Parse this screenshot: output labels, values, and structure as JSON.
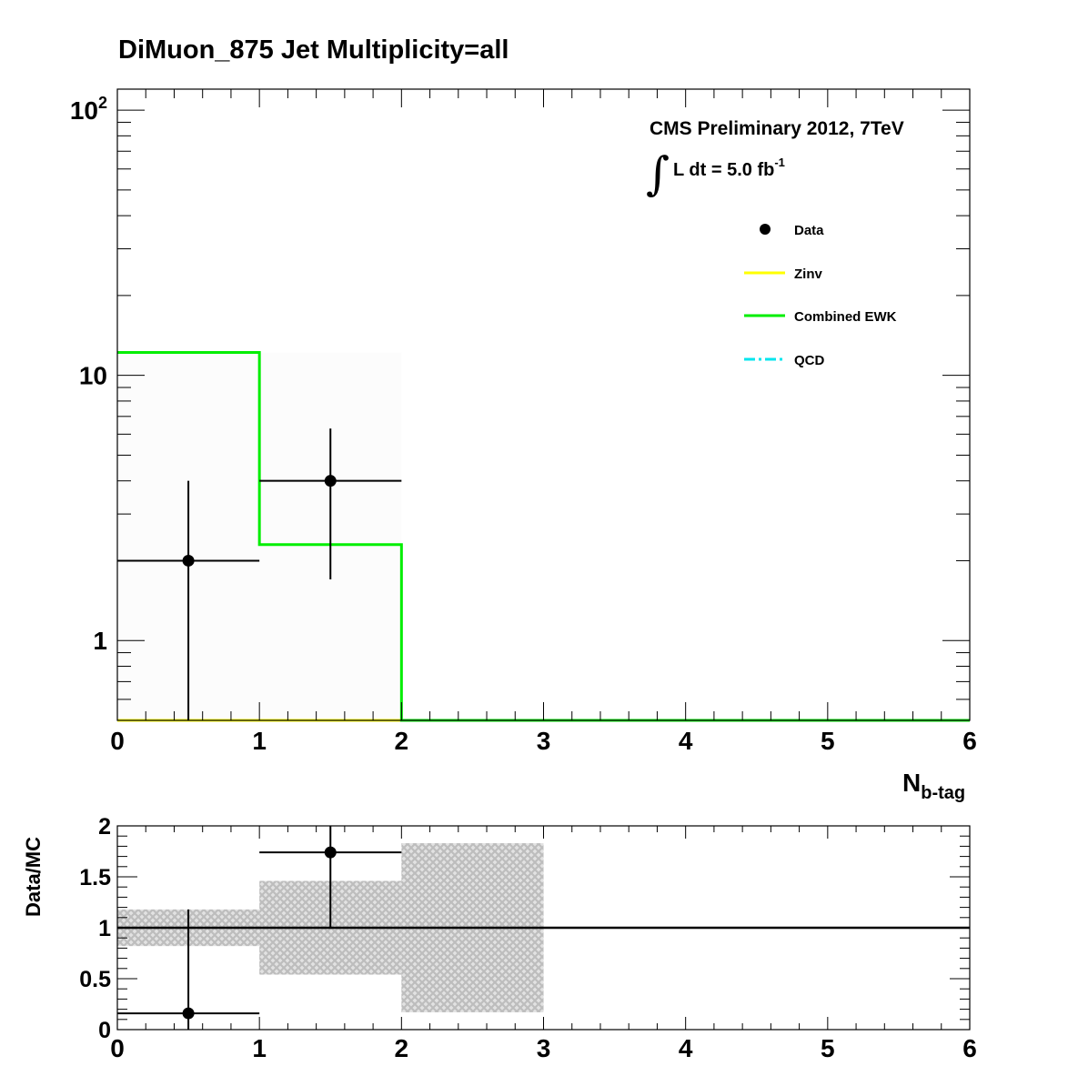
{
  "title": "DiMuon_875    Jet Multiplicity=all",
  "cms_label": "CMS Preliminary 2012, 7TeV",
  "lumi_label": "L dt = 5.0 fb",
  "lumi_exp": "-1",
  "integral_symbol": "∫",
  "colors": {
    "zinv": "#ffff00",
    "ewk": "#00ee00",
    "qcd": "#00e5ee",
    "data": "#000000",
    "band": "#c8c8c8"
  },
  "chart_data": [
    {
      "type": "histogram",
      "name": "main",
      "xlabel_main": "N",
      "xlabel_sub": "b-tag",
      "xlim": [
        0,
        6
      ],
      "ylim": [
        0.5,
        120
      ],
      "yscale": "log",
      "xticks": [
        "0",
        "1",
        "2",
        "3",
        "4",
        "5",
        "6"
      ],
      "yticks": [
        {
          "value": 1,
          "label": "1"
        },
        {
          "value": 10,
          "label": "10"
        },
        {
          "value": 100,
          "label": "10",
          "exp": "2"
        }
      ],
      "bin_edges": [
        0,
        1,
        2,
        3,
        4,
        5,
        6
      ],
      "series": [
        {
          "name": "Combined EWK",
          "style": "solid",
          "values": [
            12.2,
            2.3,
            0,
            0,
            0,
            0
          ]
        },
        {
          "name": "Zinv",
          "style": "solid",
          "values": [
            0,
            0,
            0,
            0,
            0,
            0
          ]
        },
        {
          "name": "QCD",
          "style": "dash-dot",
          "values": [
            0,
            0,
            0,
            0,
            0,
            0
          ]
        }
      ],
      "data_points": [
        {
          "x": 0.5,
          "y": 2.0,
          "xerr": 0.5,
          "ylo": 0.5,
          "yhi": 4.0
        },
        {
          "x": 1.5,
          "y": 4.0,
          "xerr": 0.5,
          "ylo": 1.7,
          "yhi": 6.3
        }
      ],
      "legend": [
        "Data",
        "Zinv",
        "Combined EWK",
        "QCD"
      ],
      "legend_position": "top-right"
    },
    {
      "type": "ratio",
      "name": "ratio",
      "ylabel": "Data/MC",
      "xlim": [
        0,
        6
      ],
      "ylim": [
        0,
        2
      ],
      "xticks": [
        "0",
        "1",
        "2",
        "3",
        "4",
        "5",
        "6"
      ],
      "yticks": [
        {
          "value": 0,
          "label": "0"
        },
        {
          "value": 0.5,
          "label": "0.5"
        },
        {
          "value": 1,
          "label": "1"
        },
        {
          "value": 1.5,
          "label": "1.5"
        },
        {
          "value": 2,
          "label": "2"
        }
      ],
      "reference_line": 1,
      "uncertainty_bands": [
        {
          "x0": 0,
          "x1": 1,
          "lo": 0.82,
          "hi": 1.18
        },
        {
          "x0": 1,
          "x1": 2,
          "lo": 0.54,
          "hi": 1.46
        },
        {
          "x0": 2,
          "x1": 3,
          "lo": 0.17,
          "hi": 1.83
        }
      ],
      "points": [
        {
          "x": 0.5,
          "y": 0.16,
          "xerr": 0.5,
          "ylo": 0,
          "yhi": 1.18
        },
        {
          "x": 1.5,
          "y": 1.74,
          "xerr": 0.5,
          "ylo": 1.0,
          "yhi": 2.0
        }
      ]
    }
  ]
}
